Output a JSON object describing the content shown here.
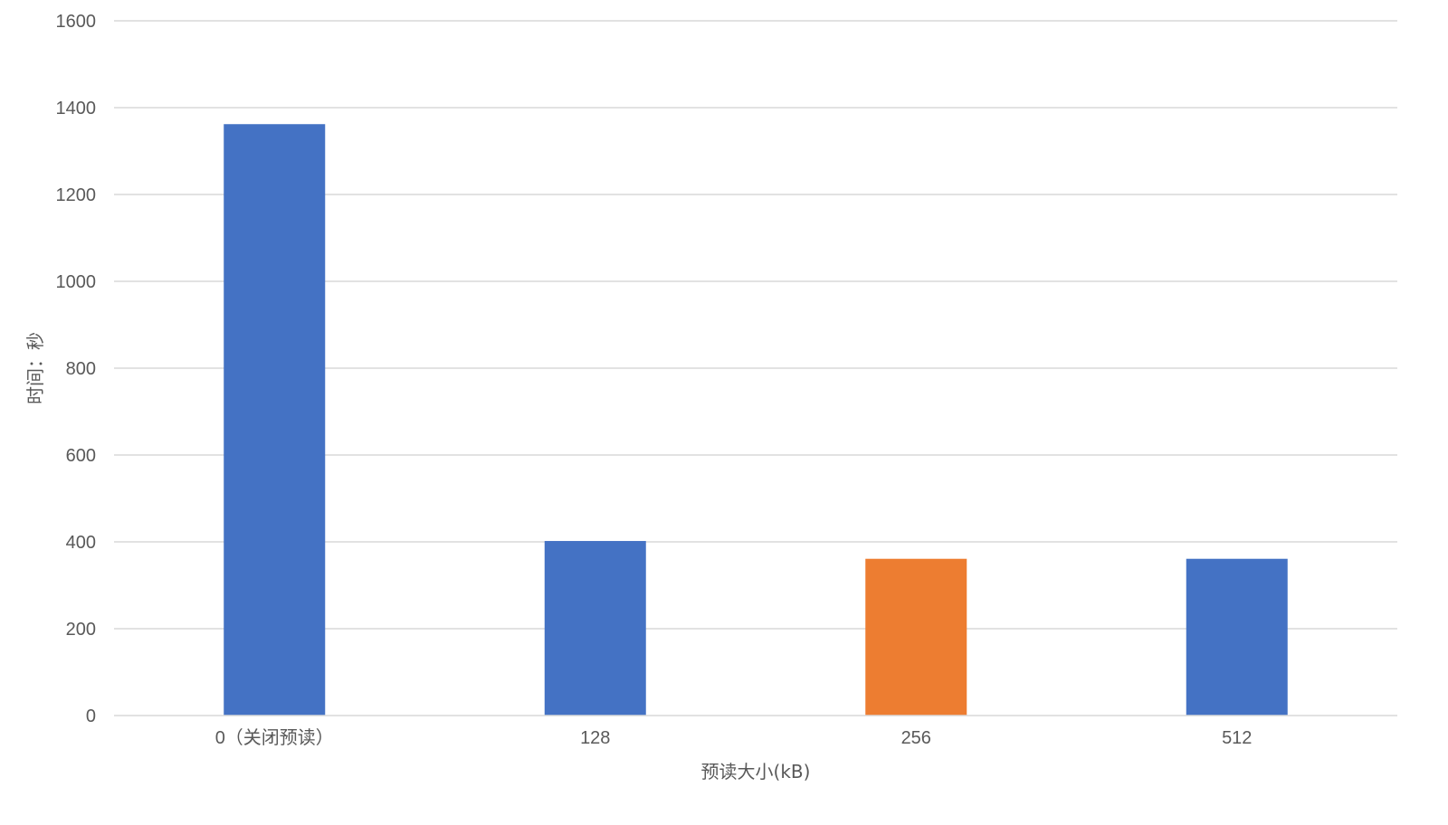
{
  "chart_data": {
    "type": "bar",
    "categories": [
      "0（关闭预读）",
      "128",
      "256",
      "512"
    ],
    "values": [
      1362,
      402,
      361,
      361
    ],
    "bar_colors": [
      "#4472c4",
      "#4472c4",
      "#ed7d31",
      "#4472c4"
    ],
    "xlabel": "预读大小(kB)",
    "ylabel": "时间：秒",
    "ylim": [
      0,
      1600
    ],
    "yticks": [
      "0",
      "200",
      "400",
      "600",
      "800",
      "1000",
      "1200",
      "1400",
      "1600"
    ],
    "grid": true,
    "legend": "none"
  }
}
